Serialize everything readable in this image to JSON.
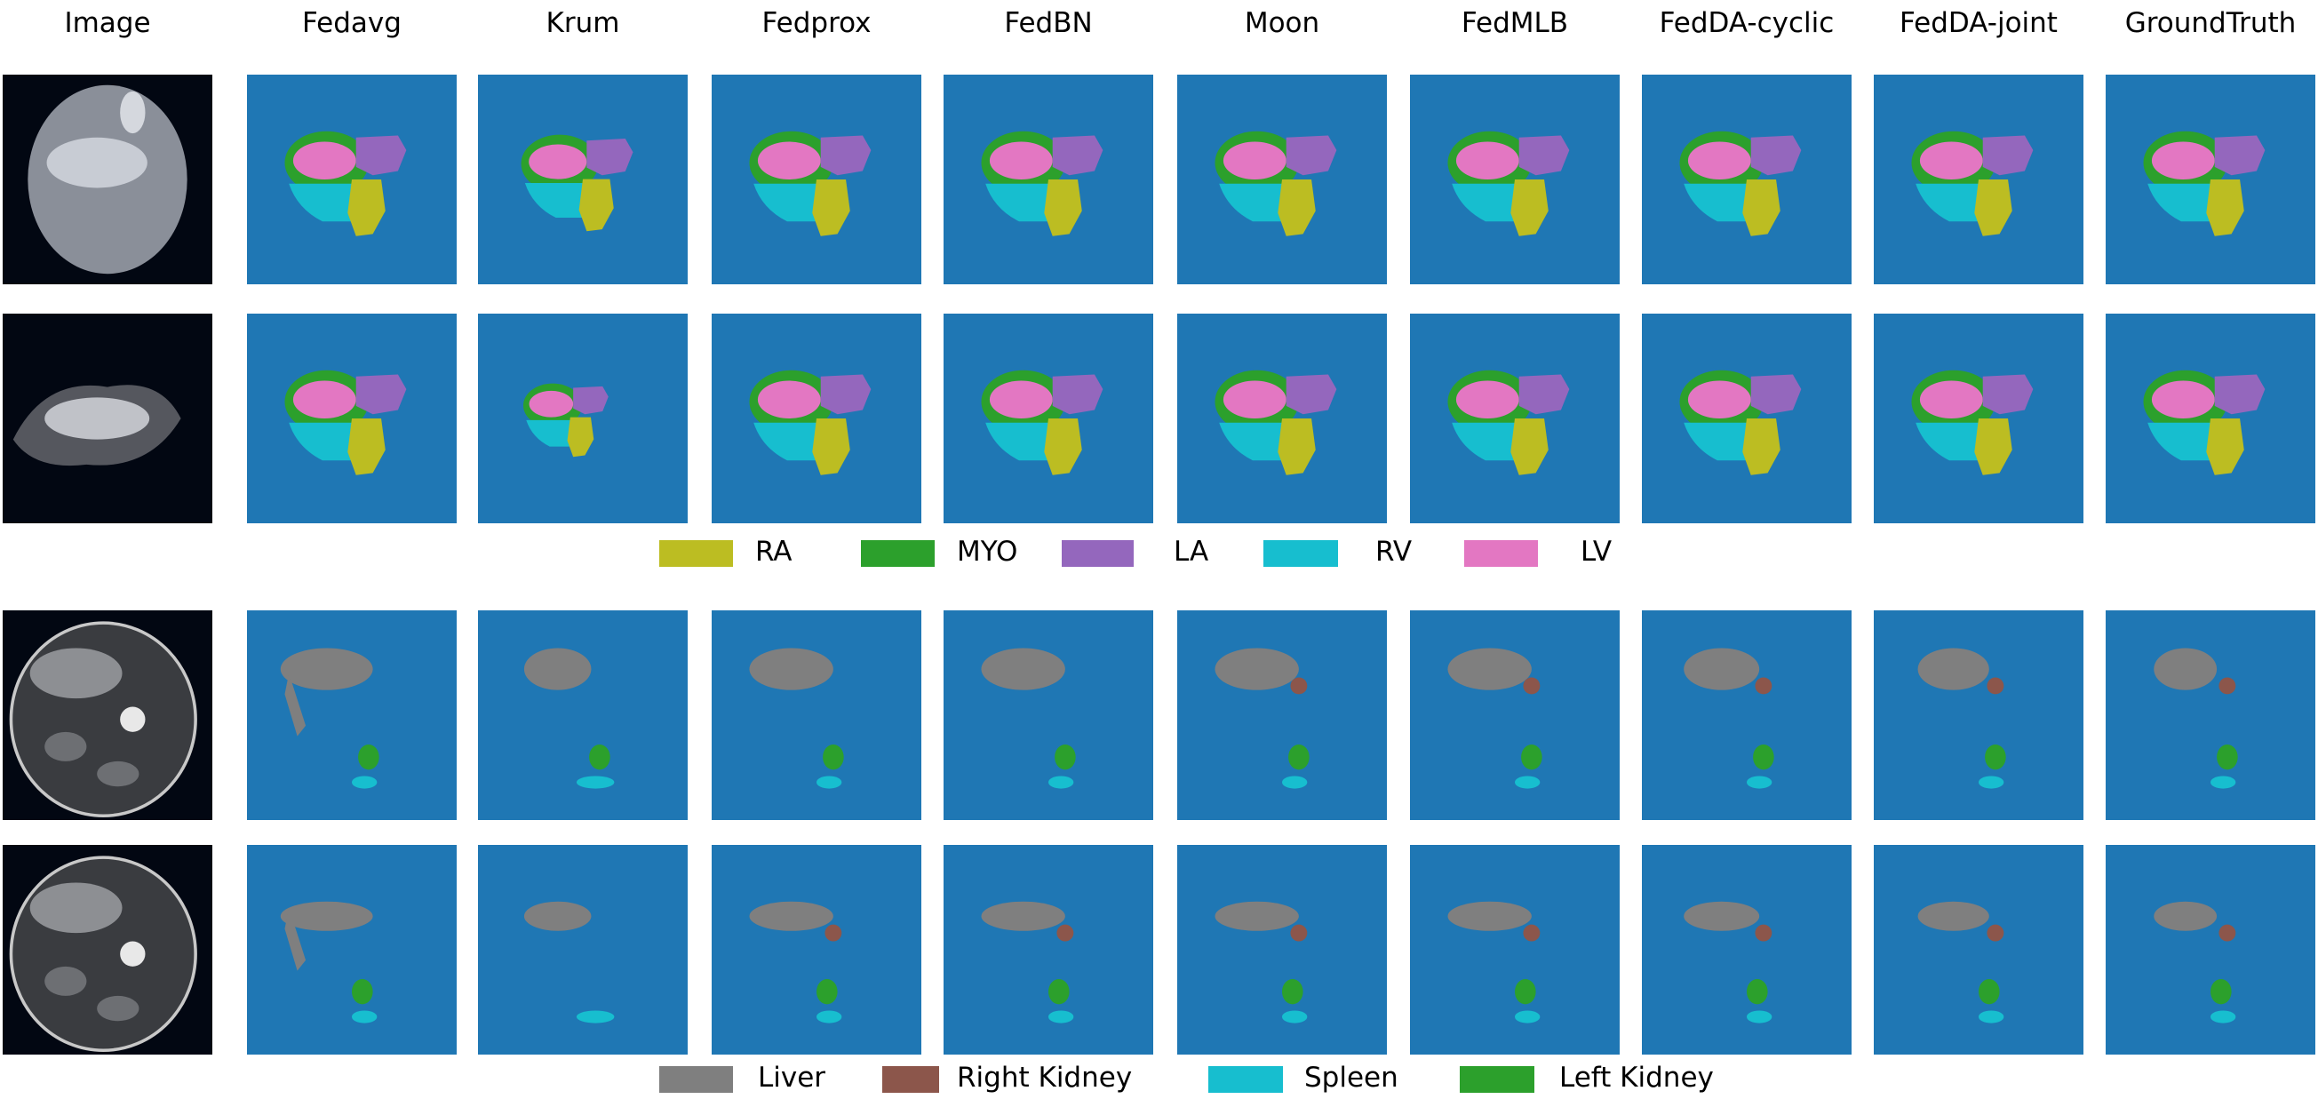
{
  "columns": [
    "Image",
    "Fedavg",
    "Krum",
    "Fedprox",
    "FedBN",
    "Moon",
    "FedMLB",
    "FedDA-cyclic",
    "FedDA-joint",
    "GroundTruth"
  ],
  "colors": {
    "background": "#1f77b4",
    "RA": "#bcbd22",
    "MYO": "#2ca02c",
    "LA": "#9467bd",
    "RV": "#17becf",
    "LV": "#e377c2",
    "Liver": "#7f7f7f",
    "Right Kidney": "#8c564b",
    "Spleen": "#17becf",
    "Left Kidney": "#2ca02c"
  },
  "rows": [
    {
      "type": "cardiac"
    },
    {
      "type": "cardiac"
    },
    {
      "type": "abdominal"
    },
    {
      "type": "abdominal"
    }
  ],
  "legend_cardiac": [
    {
      "label": "RA",
      "color": "#bcbd22"
    },
    {
      "label": "MYO",
      "color": "#2ca02c"
    },
    {
      "label": "LA",
      "color": "#9467bd"
    },
    {
      "label": "RV",
      "color": "#17becf"
    },
    {
      "label": "LV",
      "color": "#e377c2"
    }
  ],
  "legend_abdominal": [
    {
      "label": "Liver",
      "color": "#7f7f7f"
    },
    {
      "label": "Right Kidney",
      "color": "#8c564b"
    },
    {
      "label": "Spleen",
      "color": "#17becf"
    },
    {
      "label": "Left Kidney",
      "color": "#2ca02c"
    }
  ]
}
